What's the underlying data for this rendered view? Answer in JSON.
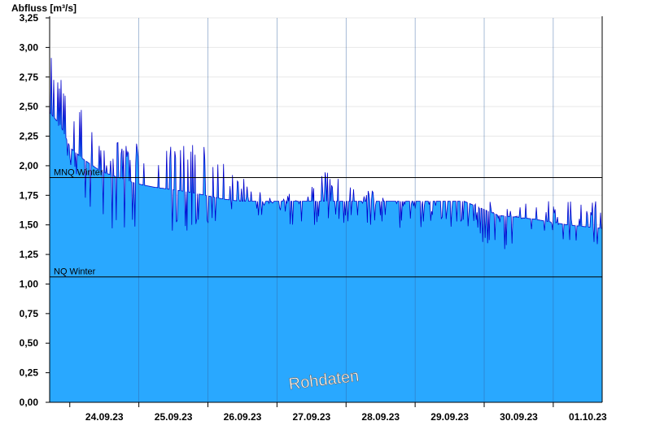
{
  "chart_data": {
    "type": "area",
    "ylabel": "Abfluss [m³/s]",
    "ylim": [
      0,
      3.25
    ],
    "yticks": [
      "0,00",
      "0,25",
      "0,50",
      "0,75",
      "1,00",
      "1,25",
      "1,50",
      "1,75",
      "2,00",
      "2,25",
      "2,50",
      "2,75",
      "3,00",
      "3,25"
    ],
    "yticks_values": [
      0,
      0.25,
      0.5,
      0.75,
      1.0,
      1.25,
      1.5,
      1.75,
      2.0,
      2.25,
      2.5,
      2.75,
      3.0,
      3.25
    ],
    "xticks": [
      "24.09.23",
      "25.09.23",
      "26.09.23",
      "27.09.23",
      "28.09.23",
      "29.09.23",
      "30.09.23",
      "01.10.23"
    ],
    "x_range_days": [
      "23.09.23 17:00",
      "01.10.23 17:00"
    ],
    "series": [
      {
        "values_note_free": true,
        "x_days": [
          0,
          0.15,
          0.3,
          0.5,
          0.75,
          1.0,
          1.25,
          1.5,
          1.75,
          2.0,
          2.25,
          2.5,
          2.75,
          3.0,
          3.5,
          4.0,
          4.5,
          5.0,
          5.5,
          6.0,
          6.5,
          7.0,
          7.5,
          8.0
        ],
        "base": [
          2.45,
          2.35,
          2.15,
          2.05,
          1.95,
          1.9,
          1.85,
          1.82,
          1.8,
          1.78,
          1.75,
          1.72,
          1.7,
          1.7,
          1.7,
          1.7,
          1.7,
          1.7,
          1.7,
          1.7,
          1.58,
          1.55,
          1.5,
          1.47
        ],
        "peak": [
          3.0,
          2.75,
          2.6,
          2.45,
          2.2,
          2.2,
          2.2,
          2.2,
          2.2,
          2.2,
          2.2,
          2.05,
          1.95,
          1.7,
          1.85,
          1.95,
          1.85,
          1.7,
          1.7,
          1.7,
          1.7,
          1.7,
          1.7,
          1.7
        ],
        "low": [
          2.4,
          2.25,
          2.0,
          1.7,
          1.5,
          1.45,
          1.45,
          1.45,
          1.45,
          1.45,
          1.5,
          1.5,
          1.7,
          1.7,
          1.5,
          1.5,
          1.5,
          1.47,
          1.47,
          1.47,
          1.25,
          1.45,
          1.3,
          1.25
        ]
      }
    ],
    "reference_lines": [
      {
        "label": "MNQ Winter",
        "value": 1.9
      },
      {
        "label": "NQ Winter",
        "value": 1.06
      }
    ],
    "watermark": "Rohdaten",
    "grid": true,
    "colors": {
      "fill": "#29a8ff",
      "line": "#0000cc",
      "ref": "#000000",
      "grid": "#e8e8e8"
    }
  }
}
